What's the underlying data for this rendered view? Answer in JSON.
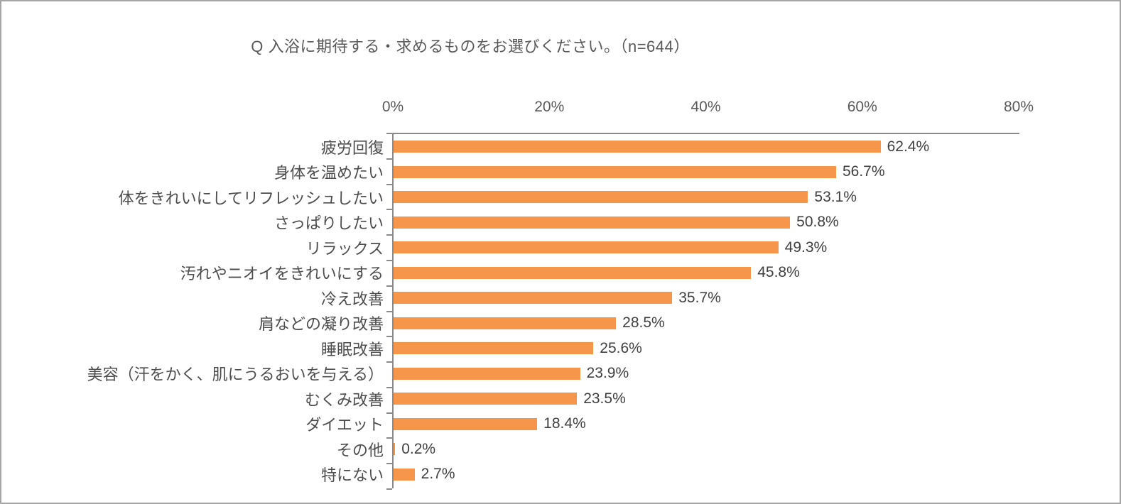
{
  "title": "Q 入浴に期待する・求めるものをお選びください。（n=644）",
  "colors": {
    "bar": "#f5964a",
    "axis_line": "#8a8a8a",
    "title_text": "#595959",
    "axis_label_text": "#595959",
    "category_text": "#4d4d4d",
    "value_text": "#404040",
    "page_border": "#a6a6a6",
    "background": "#ffffff"
  },
  "chart_data": {
    "type": "bar",
    "orientation": "horizontal",
    "title": "Q 入浴に期待する・求めるものをお選びください。（n=644）",
    "categories": [
      "疲労回復",
      "身体を温めたい",
      "体をきれいにしてリフレッシュしたい",
      "さっぱりしたい",
      "リラックス",
      "汚れやニオイをきれいにする",
      "冷え改善",
      "肩などの凝り改善",
      "睡眠改善",
      "美容（汗をかく、肌にうるおいを与える）",
      "むくみ改善",
      "ダイエット",
      "その他",
      "特にない"
    ],
    "values": [
      62.4,
      56.7,
      53.1,
      50.8,
      49.3,
      45.8,
      35.7,
      28.5,
      25.6,
      23.9,
      23.5,
      18.4,
      0.2,
      2.7
    ],
    "value_labels": [
      "62.4%",
      "56.7%",
      "53.1%",
      "50.8%",
      "49.3%",
      "45.8%",
      "35.7%",
      "28.5%",
      "25.6%",
      "23.9%",
      "23.5%",
      "18.4%",
      "0.2%",
      "2.7%"
    ],
    "x_axis": {
      "position": "top",
      "min": 0,
      "max": 80,
      "tick_labels": [
        "0%",
        "20%",
        "40%",
        "60%",
        "80%"
      ]
    },
    "grid": false,
    "legend": false,
    "data_labels": "outside-end"
  }
}
